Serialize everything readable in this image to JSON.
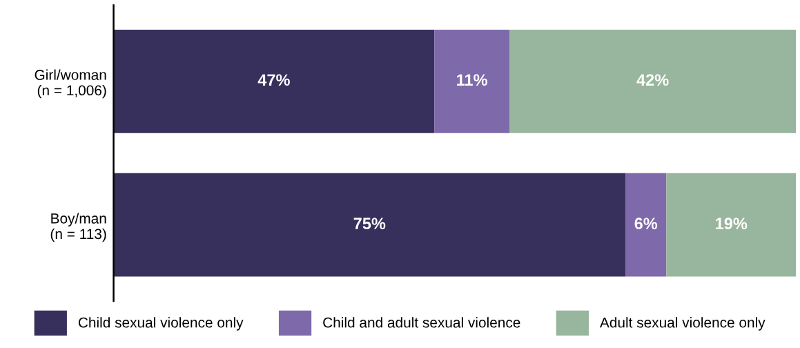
{
  "chart_data": {
    "type": "bar",
    "orientation": "horizontal",
    "stacked": true,
    "categories": [
      "Girl/woman\n(n = 1,006)",
      "Boy/man\n(n = 113)"
    ],
    "series": [
      {
        "name": "Child sexual violence only",
        "color": "#37305c",
        "values": [
          47,
          75
        ],
        "value_labels": [
          "47%",
          "75%"
        ]
      },
      {
        "name": "Child and adult sexual violence",
        "color": "#7e6aaa",
        "values": [
          11,
          6
        ],
        "value_labels": [
          "11%",
          "6%"
        ]
      },
      {
        "name": "Adult sexual violence only",
        "color": "#98b59e",
        "values": [
          42,
          19
        ],
        "value_labels": [
          "42%",
          "19%"
        ]
      }
    ],
    "xlim": [
      0,
      100
    ],
    "tick_labels": "y",
    "legend": "bottom",
    "grid": false
  }
}
